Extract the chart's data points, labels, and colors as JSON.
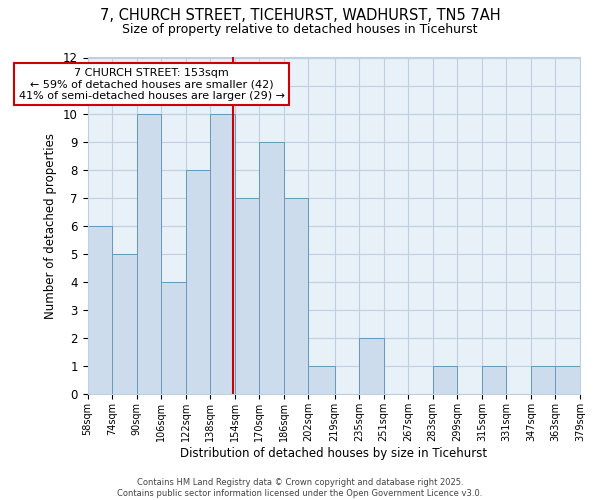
{
  "title": "7, CHURCH STREET, TICEHURST, WADHURST, TN5 7AH",
  "subtitle": "Size of property relative to detached houses in Ticehurst",
  "xlabel": "Distribution of detached houses by size in Ticehurst",
  "ylabel": "Number of detached properties",
  "footer_lines": [
    "Contains HM Land Registry data © Crown copyright and database right 2025.",
    "Contains public sector information licensed under the Open Government Licence v3.0."
  ],
  "annotation_title": "7 CHURCH STREET: 153sqm",
  "annotation_line1": "← 59% of detached houses are smaller (42)",
  "annotation_line2": "41% of semi-detached houses are larger (29) →",
  "property_line_x": 153,
  "bar_edges": [
    58,
    74,
    90,
    106,
    122,
    138,
    154,
    170,
    186,
    202,
    219,
    235,
    251,
    267,
    283,
    299,
    315,
    331,
    347,
    363,
    379
  ],
  "bar_heights": [
    6,
    5,
    10,
    4,
    8,
    10,
    7,
    9,
    7,
    1,
    0,
    2,
    0,
    0,
    1,
    0,
    1,
    0,
    1,
    1
  ],
  "bar_color": "#ccdcec",
  "bar_edgecolor": "#6699bb",
  "grid_color": "#c0d0e0",
  "bg_color": "#e8f0f8",
  "annotation_box_edgecolor": "#cc0000",
  "property_line_color": "#cc0000",
  "ylim": [
    0,
    12
  ],
  "yticks": [
    0,
    1,
    2,
    3,
    4,
    5,
    6,
    7,
    8,
    9,
    10,
    11,
    12
  ]
}
